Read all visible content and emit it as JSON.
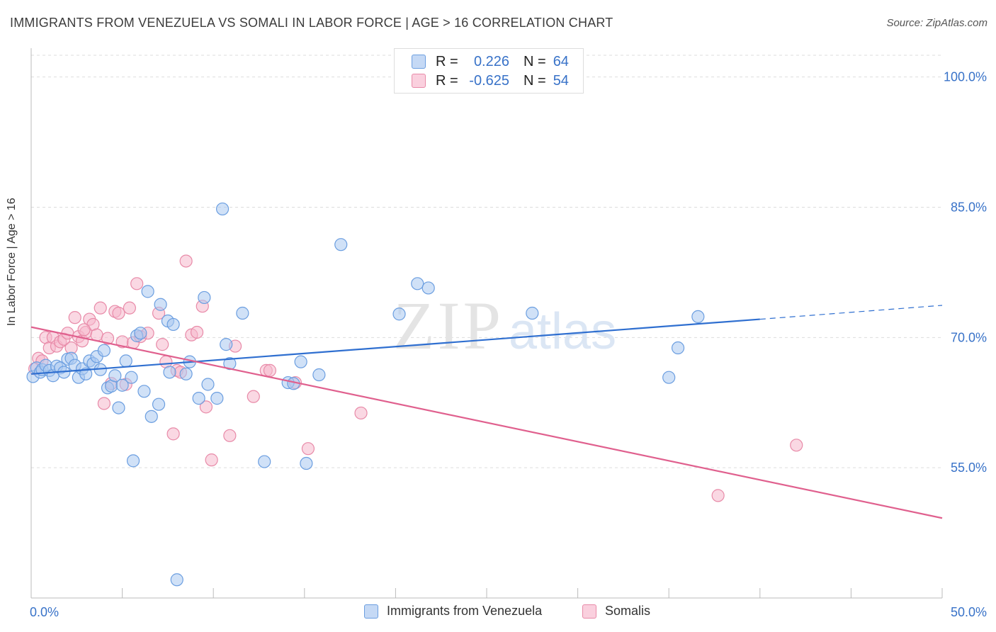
{
  "header": {
    "title": "IMMIGRANTS FROM VENEZUELA VS SOMALI IN LABOR FORCE | AGE > 16 CORRELATION CHART",
    "source": "Source: ZipAtlas.com"
  },
  "legend": {
    "rows": [
      {
        "r_label": "R =",
        "r_value": "0.226",
        "n_label": "N =",
        "n_value": "64"
      },
      {
        "r_label": "R =",
        "r_value": "-0.625",
        "n_label": "N =",
        "n_value": "54"
      }
    ],
    "bottom": [
      "Immigrants from Venezuela",
      "Somalis"
    ]
  },
  "colors": {
    "blue_fill": "#aac8f0",
    "blue_stroke": "#6b9ee0",
    "blue_line": "#2f6fd0",
    "pink_fill": "#f5b8cc",
    "pink_stroke": "#e88aa8",
    "pink_line": "#e0608e",
    "tick_label": "#3872c8",
    "grid": "#dddddd",
    "watermark": "#e6e6e6"
  },
  "watermark": {
    "zip": "ZIP",
    "atlas": "atlas"
  },
  "chart_data": {
    "type": "scatter",
    "title": "IMMIGRANTS FROM VENEZUELA VS SOMALI IN LABOR FORCE | AGE > 16 CORRELATION CHART",
    "xlabel": "",
    "ylabel": "In Labor Force | Age > 16",
    "xlim": [
      0,
      50
    ],
    "ylim": [
      40,
      102.5
    ],
    "x_tick_labels": [
      "0.0%",
      "50.0%"
    ],
    "y_ticks": [
      55,
      70,
      85,
      100
    ],
    "y_tick_labels": [
      "55.0%",
      "70.0%",
      "85.0%",
      "100.0%"
    ],
    "grid": true,
    "series": [
      {
        "name": "Immigrants from Venezuela",
        "color": "#aac8f0",
        "trend": {
          "x": [
            0,
            40
          ],
          "y": [
            65.8,
            72.1
          ],
          "dashed_x": [
            40,
            50
          ],
          "dashed_y": [
            72.1,
            73.7
          ]
        },
        "points": [
          [
            0.1,
            65.5
          ],
          [
            0.3,
            66.5
          ],
          [
            0.5,
            66.0
          ],
          [
            0.6,
            66.3
          ],
          [
            0.8,
            66.8
          ],
          [
            1.0,
            66.2
          ],
          [
            1.2,
            65.6
          ],
          [
            1.4,
            66.7
          ],
          [
            1.6,
            66.5
          ],
          [
            1.8,
            66.0
          ],
          [
            2.0,
            67.5
          ],
          [
            2.2,
            67.6
          ],
          [
            2.4,
            66.8
          ],
          [
            2.6,
            65.4
          ],
          [
            2.8,
            66.4
          ],
          [
            3.0,
            65.8
          ],
          [
            3.2,
            67.3
          ],
          [
            3.4,
            67.0
          ],
          [
            3.6,
            67.8
          ],
          [
            3.8,
            66.3
          ],
          [
            4.0,
            68.5
          ],
          [
            4.2,
            64.2
          ],
          [
            4.4,
            64.4
          ],
          [
            4.6,
            65.6
          ],
          [
            4.8,
            61.9
          ],
          [
            5.0,
            64.5
          ],
          [
            5.2,
            67.3
          ],
          [
            5.5,
            65.4
          ],
          [
            5.8,
            70.2
          ],
          [
            6.0,
            70.5
          ],
          [
            6.2,
            63.8
          ],
          [
            6.4,
            75.3
          ],
          [
            6.6,
            60.9
          ],
          [
            7.0,
            62.3
          ],
          [
            7.1,
            73.8
          ],
          [
            7.5,
            71.9
          ],
          [
            7.8,
            71.5
          ],
          [
            8.0,
            42.1
          ],
          [
            8.5,
            65.8
          ],
          [
            8.7,
            67.2
          ],
          [
            9.2,
            63.0
          ],
          [
            9.5,
            74.6
          ],
          [
            9.7,
            64.6
          ],
          [
            10.2,
            63.0
          ],
          [
            10.5,
            84.8
          ],
          [
            10.7,
            69.2
          ],
          [
            10.9,
            67.0
          ],
          [
            11.6,
            72.8
          ],
          [
            12.8,
            55.7
          ],
          [
            14.1,
            64.8
          ],
          [
            14.4,
            64.7
          ],
          [
            14.8,
            67.2
          ],
          [
            15.1,
            55.5
          ],
          [
            15.8,
            65.7
          ],
          [
            17.0,
            80.7
          ],
          [
            20.2,
            72.7
          ],
          [
            21.2,
            76.2
          ],
          [
            21.8,
            75.7
          ],
          [
            27.5,
            72.8
          ],
          [
            35.0,
            65.4
          ],
          [
            35.5,
            68.8
          ],
          [
            36.6,
            72.4
          ],
          [
            5.6,
            55.8
          ],
          [
            7.6,
            66.0
          ]
        ]
      },
      {
        "name": "Somalis",
        "color": "#f5b8cc",
        "trend": {
          "x": [
            0,
            50
          ],
          "y": [
            71.2,
            49.2
          ]
        },
        "points": [
          [
            0.2,
            66.4
          ],
          [
            0.4,
            67.6
          ],
          [
            0.6,
            67.3
          ],
          [
            0.8,
            70.0
          ],
          [
            1.0,
            68.8
          ],
          [
            1.2,
            70.0
          ],
          [
            1.4,
            69.0
          ],
          [
            1.6,
            69.5
          ],
          [
            1.8,
            69.8
          ],
          [
            2.0,
            70.5
          ],
          [
            2.2,
            68.8
          ],
          [
            2.4,
            72.3
          ],
          [
            2.6,
            70.1
          ],
          [
            2.8,
            69.6
          ],
          [
            3.0,
            70.6
          ],
          [
            3.2,
            72.1
          ],
          [
            3.4,
            71.5
          ],
          [
            3.6,
            70.3
          ],
          [
            3.8,
            73.4
          ],
          [
            4.0,
            62.4
          ],
          [
            4.2,
            69.9
          ],
          [
            4.4,
            64.7
          ],
          [
            4.6,
            73.0
          ],
          [
            4.8,
            72.8
          ],
          [
            5.0,
            69.5
          ],
          [
            5.2,
            64.6
          ],
          [
            5.4,
            73.4
          ],
          [
            5.6,
            69.4
          ],
          [
            5.8,
            76.2
          ],
          [
            6.0,
            70.1
          ],
          [
            6.4,
            70.5
          ],
          [
            7.0,
            72.8
          ],
          [
            7.2,
            69.2
          ],
          [
            7.4,
            67.2
          ],
          [
            7.8,
            58.9
          ],
          [
            8.0,
            66.2
          ],
          [
            8.2,
            66.0
          ],
          [
            8.5,
            78.8
          ],
          [
            8.8,
            70.3
          ],
          [
            9.1,
            70.6
          ],
          [
            9.4,
            73.6
          ],
          [
            9.6,
            62.0
          ],
          [
            9.9,
            55.9
          ],
          [
            10.9,
            58.7
          ],
          [
            11.2,
            69.0
          ],
          [
            12.2,
            63.2
          ],
          [
            12.9,
            66.2
          ],
          [
            13.1,
            66.2
          ],
          [
            14.5,
            64.8
          ],
          [
            15.2,
            57.2
          ],
          [
            18.1,
            61.3
          ],
          [
            42.0,
            57.6
          ],
          [
            37.7,
            51.8
          ],
          [
            2.9,
            70.9
          ]
        ]
      }
    ]
  }
}
